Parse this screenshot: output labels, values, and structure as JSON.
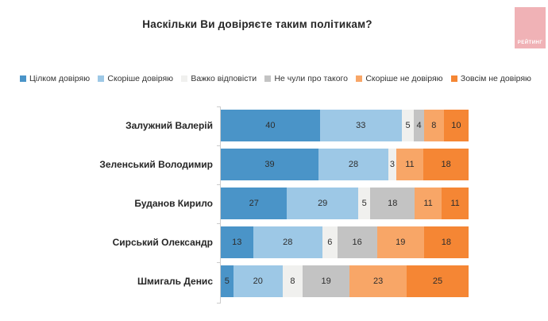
{
  "title": "Наскільки Ви довіряєте таким політикам?",
  "logo": {
    "text": "РЕЙТИНГ",
    "bg_color": "#f0b2b6",
    "text_color": "#ffffff"
  },
  "chart_data": {
    "type": "bar",
    "orientation": "horizontal",
    "stacked": true,
    "unit": "percent",
    "xlim": [
      0,
      100
    ],
    "legend_position": "top",
    "value_labels": "inside",
    "grid": false,
    "categories": [
      "Залужний Валерій",
      "Зеленський Володимир",
      "Буданов Кирило",
      "Сирський Олександр",
      "Шмигаль Денис"
    ],
    "series": [
      {
        "name": "Цілком довіряю",
        "color": "#4a94c8",
        "values": [
          40,
          39,
          27,
          13,
          5
        ]
      },
      {
        "name": "Скоріше довіряю",
        "color": "#9dc8e6",
        "values": [
          33,
          28,
          29,
          28,
          20
        ]
      },
      {
        "name": "Важко відповісти",
        "color": "#f0f0ee",
        "values": [
          5,
          3,
          5,
          6,
          8
        ]
      },
      {
        "name": "Не чули про такого",
        "color": "#c3c3c3",
        "values": [
          4,
          0,
          18,
          16,
          19
        ]
      },
      {
        "name": "Скоріше не довіряю",
        "color": "#f8a667",
        "values": [
          8,
          11,
          11,
          19,
          23
        ]
      },
      {
        "name": "Зовсім не довіряю",
        "color": "#f58634",
        "values": [
          10,
          18,
          11,
          18,
          25
        ]
      }
    ]
  }
}
